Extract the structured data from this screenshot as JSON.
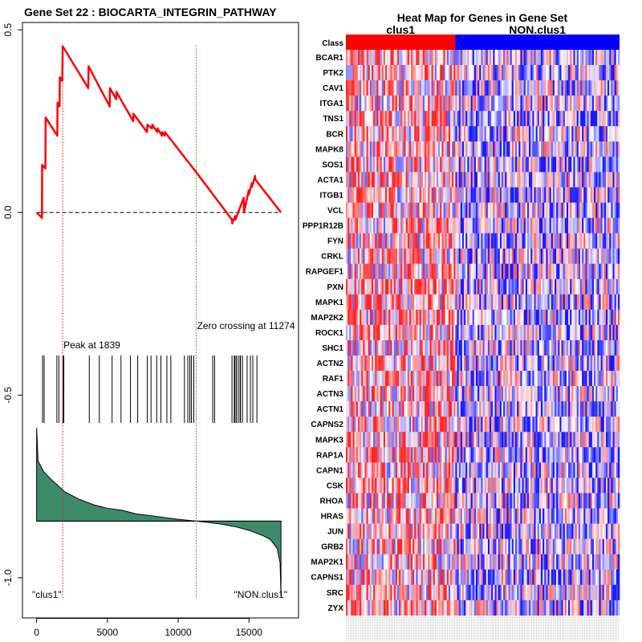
{
  "chart_data": [
    {
      "type": "line",
      "title": "Gene Set  22 : BIOCARTA_INTEGRIN_PATHWAY",
      "xlabel": "",
      "ylabel": "",
      "xlim": [
        -1000,
        18500
      ],
      "ylim": [
        -1.11,
        0.52
      ],
      "x_ticks": [
        0,
        5000,
        10000,
        15000
      ],
      "x_tick_labels": [
        "0",
        "5000",
        "10000",
        "15000"
      ],
      "y_ticks": [
        0.5,
        0.0,
        -0.5,
        -1.0
      ],
      "y_tick_labels": [
        "0.5",
        "0.0",
        "-0.5",
        "-1.0"
      ],
      "series": [
        {
          "name": "Running enrichment score",
          "color": "#ff0000",
          "x": [
            0,
            380,
            390,
            620,
            640,
            1460,
            1480,
            1620,
            1640,
            1820,
            1839,
            3650,
            3670,
            5160,
            5180,
            5620,
            5640,
            6820,
            6840,
            7800,
            7820,
            8150,
            8170,
            8520,
            8540,
            8850,
            8870,
            9050,
            9070,
            11274,
            13800,
            13820,
            14020,
            14040,
            14630,
            14650,
            14980,
            15000,
            15200,
            15220,
            15430,
            15450,
            17260
          ],
          "y": [
            0.0,
            -0.015,
            0.13,
            0.12,
            0.26,
            0.21,
            0.3,
            0.29,
            0.37,
            0.36,
            0.455,
            0.34,
            0.4,
            0.29,
            0.34,
            0.31,
            0.33,
            0.25,
            0.27,
            0.22,
            0.24,
            0.23,
            0.24,
            0.22,
            0.23,
            0.21,
            0.22,
            0.21,
            0.22,
            0.11,
            -0.02,
            -0.03,
            -0.01,
            -0.02,
            0.04,
            0.0,
            0.06,
            0.05,
            0.08,
            0.07,
            0.1,
            0.09,
            0.0
          ]
        }
      ],
      "baseline": 0.0,
      "peak": {
        "x": 1839,
        "label": "Peak at 1839",
        "color": "#ff0000"
      },
      "zero_crossing": {
        "x": 11274,
        "label": "Zero crossing at 11274",
        "color": "#00aa00"
      },
      "hit_positions": [
        420,
        530,
        1430,
        1570,
        1850,
        1920,
        3720,
        4430,
        5330,
        5960,
        6630,
        7140,
        7820,
        8080,
        8480,
        8780,
        9200,
        9480,
        10440,
        10680,
        10820,
        10930,
        11100,
        12440,
        12570,
        13800,
        13960,
        14010,
        14110,
        14240,
        14370,
        14400,
        14540,
        14870,
        15100,
        15270,
        15560
      ],
      "ranked_metric": {
        "color": "#3e8b6b",
        "baseline_y": -0.845,
        "x": [
          0,
          100,
          500,
          1000,
          2000,
          3000,
          4000,
          5000,
          6000,
          7000,
          8000,
          9000,
          10000,
          11274,
          12000,
          13000,
          14000,
          15000,
          16000,
          16500,
          17000,
          17200,
          17260
        ],
        "y": [
          -0.59,
          -0.68,
          -0.71,
          -0.73,
          -0.765,
          -0.785,
          -0.8,
          -0.81,
          -0.815,
          -0.825,
          -0.83,
          -0.835,
          -0.84,
          -0.845,
          -0.848,
          -0.853,
          -0.86,
          -0.87,
          -0.885,
          -0.895,
          -0.92,
          -0.96,
          -1.05
        ]
      },
      "left_label": "\"clus1\"",
      "right_label": "\"NON.clus1\""
    },
    {
      "type": "heatmap",
      "title": "Heat Map for Genes in Gene Set",
      "class_row_label": "Class",
      "classes": [
        {
          "name": "clus1",
          "color": "#ff0000"
        },
        {
          "name": "NON.clus1",
          "color": "#0000ff"
        }
      ],
      "class_split_fraction": 0.4,
      "sample_count": 160,
      "genes": [
        "BCAR1",
        "PTK2",
        "CAV1",
        "ITGA1",
        "TNS1",
        "BCR",
        "MAPK8",
        "SOS1",
        "ACTA1",
        "ITGB1",
        "VCL",
        "PPP1R12B",
        "FYN",
        "CRKL",
        "RAPGEF1",
        "PXN",
        "MAPK1",
        "MAP2K2",
        "ROCK1",
        "SHC1",
        "ACTN2",
        "RAF1",
        "ACTN3",
        "ACTN1",
        "CAPNS2",
        "MAPK3",
        "RAP1A",
        "CAPN1",
        "CSK",
        "RHOA",
        "HRAS",
        "JUN",
        "GRB2",
        "MAP2K1",
        "CAPNS1",
        "SRC",
        "ZYX"
      ]
    }
  ]
}
